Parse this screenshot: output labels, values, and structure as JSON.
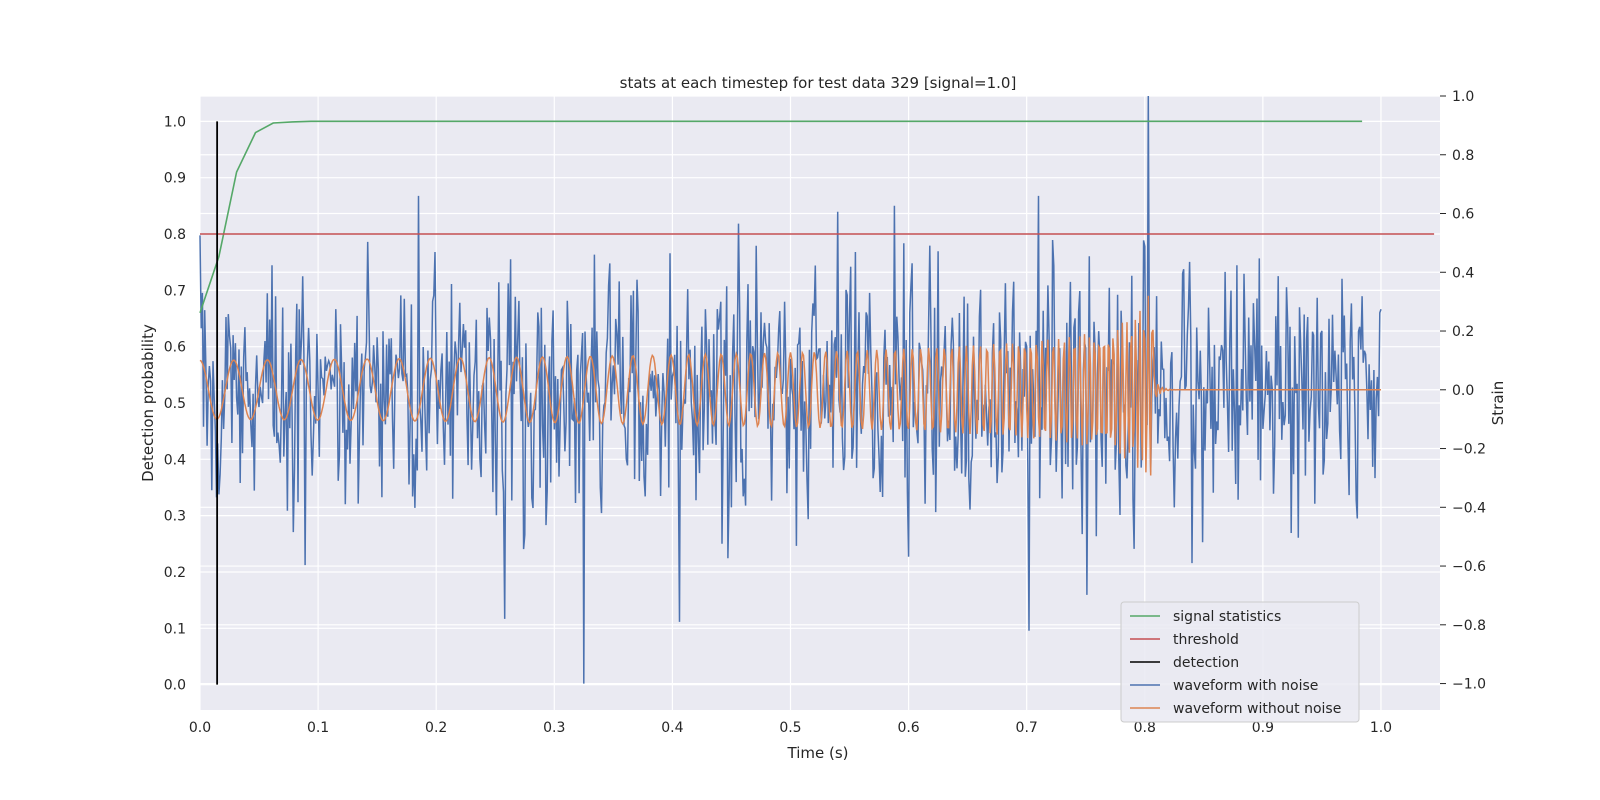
{
  "chart_data": {
    "type": "line",
    "title": "stats at each timestep for test data 329 [signal=1.0]",
    "xlabel": "Time (s)",
    "ylabel": "Detection probability",
    "y2label": "Strain",
    "xlim": [
      0.0,
      1.05
    ],
    "ylim": [
      -0.045,
      1.045
    ],
    "y2lim": [
      -1.09,
      1.0
    ],
    "x_ticks": [
      "0.0",
      "0.1",
      "0.2",
      "0.3",
      "0.4",
      "0.5",
      "0.6",
      "0.7",
      "0.8",
      "0.9",
      "1.0"
    ],
    "y_ticks": [
      "0.0",
      "0.1",
      "0.2",
      "0.3",
      "0.4",
      "0.5",
      "0.6",
      "0.7",
      "0.8",
      "0.9",
      "1.0"
    ],
    "y2_ticks": [
      "−1.0",
      "−0.8",
      "−0.6",
      "−0.4",
      "−0.2",
      "0.0",
      "0.2",
      "0.4",
      "0.6",
      "0.8",
      "1.0"
    ],
    "grid": true,
    "legend_position": "lower-right",
    "colors": {
      "signal_statistics": "#55a868",
      "threshold": "#c44e52",
      "detection": "#000000",
      "waveform_with_noise": "#4c72b0",
      "waveform_without_noise": "#dd8452",
      "plot_background": "#eaeaf2",
      "grid": "#ffffff"
    },
    "series": [
      {
        "name": "signal statistics",
        "axis": "left",
        "x": [
          0.0,
          0.016,
          0.031,
          0.047,
          0.062,
          0.078,
          0.094,
          0.2,
          0.4,
          0.6,
          0.8,
          0.984
        ],
        "y": [
          0.66,
          0.76,
          0.91,
          0.98,
          0.997,
          0.999,
          1.0,
          1.0,
          1.0,
          1.0,
          1.0,
          1.0
        ]
      },
      {
        "name": "threshold",
        "axis": "left",
        "x": [
          0.0,
          1.045
        ],
        "y": [
          0.8,
          0.8
        ]
      },
      {
        "name": "detection",
        "axis": "left",
        "x": [
          0.0145,
          0.0145
        ],
        "y": [
          0.0,
          1.0
        ]
      },
      {
        "name": "waveform with noise",
        "axis": "right",
        "description": "noisy strain, approx. 1000 samples over 0–1 s, amplitude mostly within ±0.5 with peaks near +1.0 at 0.803 s and −1.0 at 0.325 s",
        "x_range": [
          0.0,
          1.0
        ],
        "y_range": [
          -1.0,
          1.0
        ]
      },
      {
        "name": "waveform without noise",
        "axis": "right",
        "description": "chirp: amplitude ~0.1 at 0 s growing to ~0.3 near 0.80 s, frequency rising from ~35 Hz; merges/ringdown ending ~0.81 s, then 0.0 to 1.0 s",
        "x_range": [
          0.0,
          1.0
        ],
        "y_range": [
          -0.42,
          0.3
        ]
      }
    ]
  },
  "legend": {
    "items": [
      {
        "label": "signal statistics",
        "color": "#55a868"
      },
      {
        "label": "threshold",
        "color": "#c44e52"
      },
      {
        "label": "detection",
        "color": "#000000"
      },
      {
        "label": "waveform with noise",
        "color": "#4c72b0"
      },
      {
        "label": "waveform without noise",
        "color": "#dd8452"
      }
    ]
  }
}
